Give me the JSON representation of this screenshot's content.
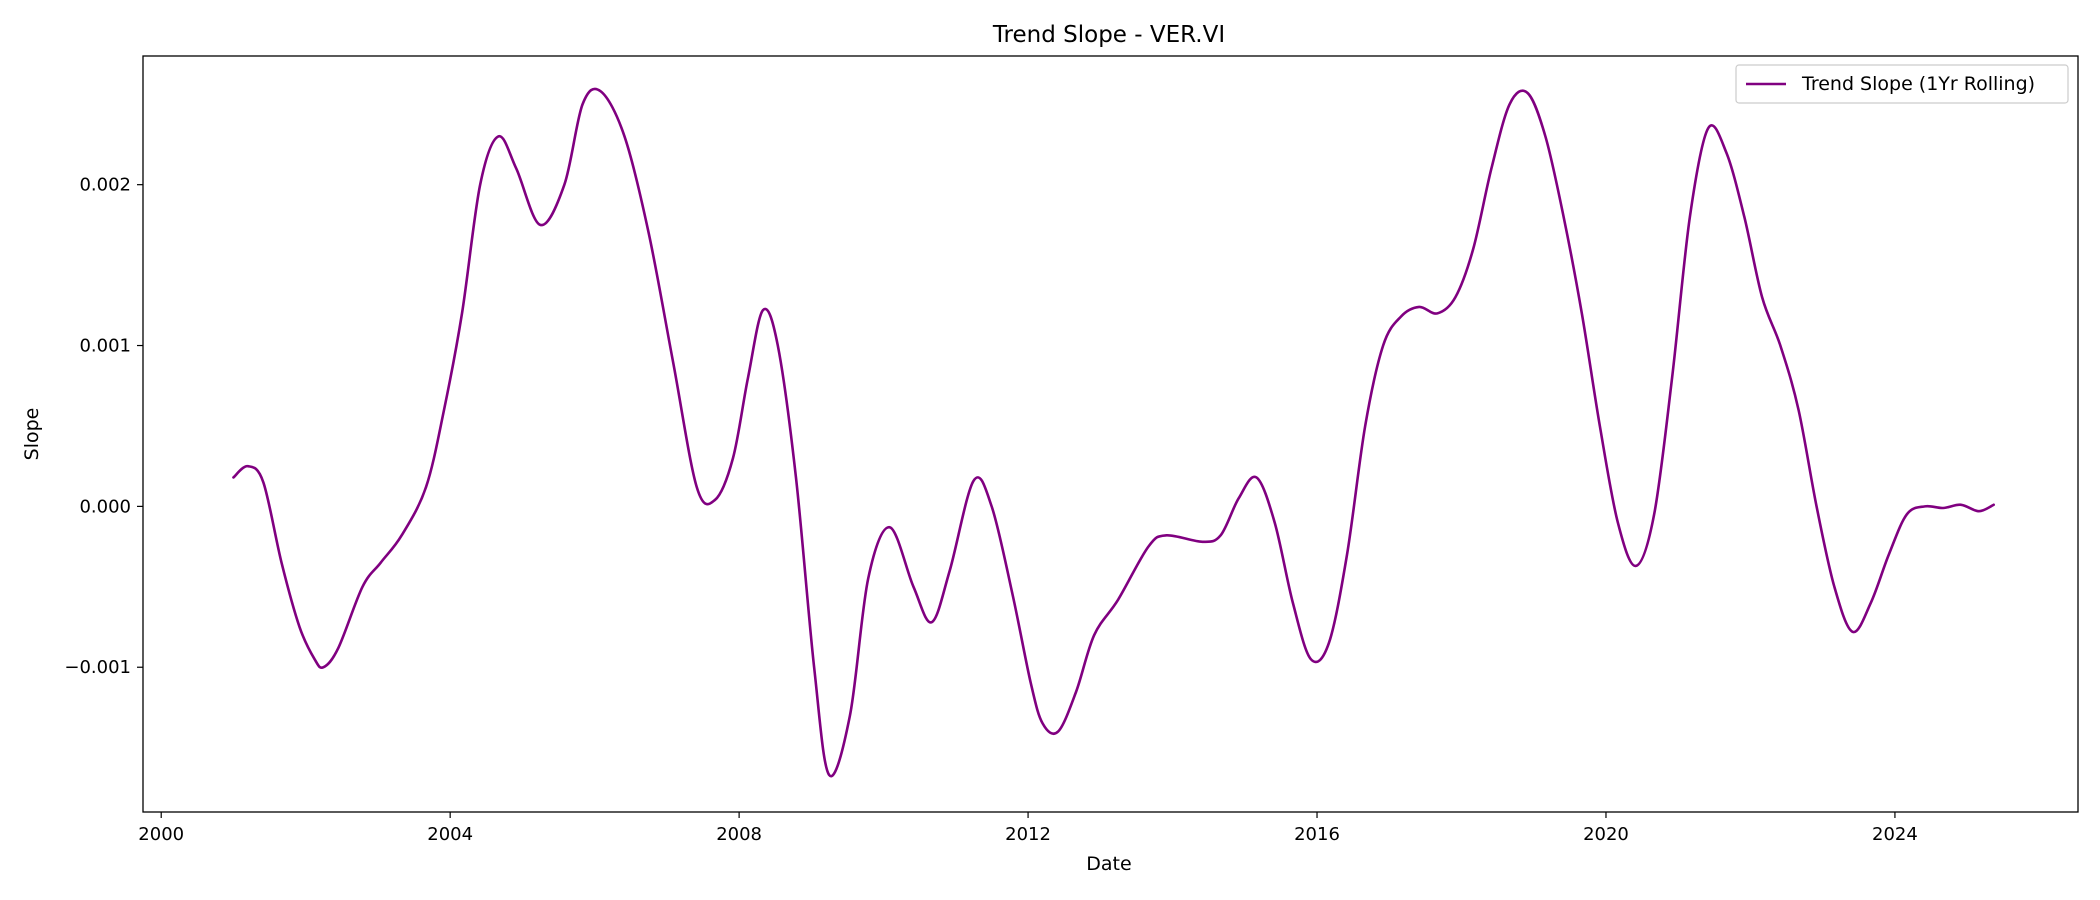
{
  "chart_data": {
    "type": "line",
    "title": "Trend Slope - VER.VI",
    "xlabel": "Date",
    "ylabel": "Slope",
    "x_axis": "date",
    "xlim": [
      "1999-10-01",
      "2026-07-15"
    ],
    "ylim": [
      -0.0019,
      0.0028
    ],
    "x_ticks": [
      "2000",
      "2004",
      "2008",
      "2012",
      "2016",
      "2020",
      "2024"
    ],
    "y_ticks": [
      {
        "value": -0.001,
        "label": "−0.001"
      },
      {
        "value": 0.0,
        "label": "0.000"
      },
      {
        "value": 0.001,
        "label": "0.001"
      },
      {
        "value": 0.002,
        "label": "0.002"
      }
    ],
    "grid": false,
    "legend_position": "top-right",
    "color": "#800080",
    "series": [
      {
        "name": "Trend Slope (1Yr Rolling)",
        "points": [
          [
            "2001-01-01",
            0.00018
          ],
          [
            "2001-03-15",
            0.00025
          ],
          [
            "2001-06-01",
            0.00015
          ],
          [
            "2001-09-01",
            -0.00035
          ],
          [
            "2001-12-01",
            -0.00075
          ],
          [
            "2002-02-15",
            -0.00095
          ],
          [
            "2002-04-01",
            -0.001
          ],
          [
            "2002-06-15",
            -0.00088
          ],
          [
            "2002-10-15",
            -0.0005
          ],
          [
            "2003-01-15",
            -0.00035
          ],
          [
            "2003-05-01",
            -0.00018
          ],
          [
            "2003-09-01",
            0.00012
          ],
          [
            "2003-12-01",
            0.0006
          ],
          [
            "2004-03-01",
            0.0012
          ],
          [
            "2004-06-01",
            0.002
          ],
          [
            "2004-09-01",
            0.0023
          ],
          [
            "2004-12-01",
            0.0021
          ],
          [
            "2005-04-01",
            0.00175
          ],
          [
            "2005-08-01",
            0.002
          ],
          [
            "2005-11-01",
            0.0025
          ],
          [
            "2006-02-01",
            0.00258
          ],
          [
            "2006-06-01",
            0.0023
          ],
          [
            "2006-10-01",
            0.0017
          ],
          [
            "2007-02-01",
            0.0009
          ],
          [
            "2007-06-01",
            0.00012
          ],
          [
            "2007-09-01",
            4e-05
          ],
          [
            "2007-12-01",
            0.0003
          ],
          [
            "2008-02-15",
            0.0008
          ],
          [
            "2008-05-01",
            0.00122
          ],
          [
            "2008-07-15",
            0.001
          ],
          [
            "2008-10-15",
            0.00018
          ],
          [
            "2009-01-15",
            -0.001
          ],
          [
            "2009-04-01",
            -0.00167
          ],
          [
            "2009-07-15",
            -0.0013
          ],
          [
            "2009-10-15",
            -0.00045
          ],
          [
            "2010-02-01",
            -0.00013
          ],
          [
            "2010-06-01",
            -0.0005
          ],
          [
            "2010-09-01",
            -0.00072
          ],
          [
            "2010-12-01",
            -0.0004
          ],
          [
            "2011-04-01",
            0.00016
          ],
          [
            "2011-07-01",
            0.0
          ],
          [
            "2011-10-15",
            -0.00055
          ],
          [
            "2012-01-15",
            -0.0011
          ],
          [
            "2012-03-15",
            -0.00135
          ],
          [
            "2012-06-01",
            -0.0014
          ],
          [
            "2012-09-01",
            -0.00115
          ],
          [
            "2012-12-01",
            -0.0008
          ],
          [
            "2013-04-01",
            -0.00058
          ],
          [
            "2013-09-01",
            -0.00025
          ],
          [
            "2013-12-01",
            -0.00018
          ],
          [
            "2014-06-01",
            -0.00022
          ],
          [
            "2014-09-01",
            -0.00018
          ],
          [
            "2014-12-01",
            5e-05
          ],
          [
            "2015-03-01",
            0.00018
          ],
          [
            "2015-06-01",
            -0.0001
          ],
          [
            "2015-09-01",
            -0.0006
          ],
          [
            "2015-12-01",
            -0.00095
          ],
          [
            "2016-03-01",
            -0.00085
          ],
          [
            "2016-06-01",
            -0.0003
          ],
          [
            "2016-09-01",
            0.0005
          ],
          [
            "2016-12-01",
            0.001
          ],
          [
            "2017-03-01",
            0.00118
          ],
          [
            "2017-06-01",
            0.00124
          ],
          [
            "2017-09-01",
            0.0012
          ],
          [
            "2017-12-01",
            0.0013
          ],
          [
            "2018-03-01",
            0.0016
          ],
          [
            "2018-06-01",
            0.0021
          ],
          [
            "2018-09-01",
            0.0025
          ],
          [
            "2018-12-01",
            0.00257
          ],
          [
            "2019-03-01",
            0.0023
          ],
          [
            "2019-06-01",
            0.0018
          ],
          [
            "2019-09-01",
            0.0012
          ],
          [
            "2019-12-01",
            0.0005
          ],
          [
            "2020-03-01",
            -0.0001
          ],
          [
            "2020-06-01",
            -0.00037
          ],
          [
            "2020-09-01",
            -5e-05
          ],
          [
            "2020-12-01",
            0.0008
          ],
          [
            "2021-03-01",
            0.0018
          ],
          [
            "2021-06-01",
            0.00235
          ],
          [
            "2021-09-01",
            0.0022
          ],
          [
            "2021-12-01",
            0.0018
          ],
          [
            "2022-03-01",
            0.0013
          ],
          [
            "2022-06-01",
            0.001
          ],
          [
            "2022-09-01",
            0.0006
          ],
          [
            "2022-12-01",
            0.0
          ],
          [
            "2023-03-01",
            -0.0005
          ],
          [
            "2023-06-01",
            -0.00078
          ],
          [
            "2023-09-01",
            -0.0006
          ],
          [
            "2023-12-01",
            -0.0003
          ],
          [
            "2024-03-01",
            -5e-05
          ],
          [
            "2024-06-01",
            0.0
          ],
          [
            "2024-09-01",
            -1e-05
          ],
          [
            "2024-12-01",
            1e-05
          ],
          [
            "2025-03-01",
            -3e-05
          ],
          [
            "2025-05-15",
            1e-05
          ]
        ]
      }
    ]
  }
}
